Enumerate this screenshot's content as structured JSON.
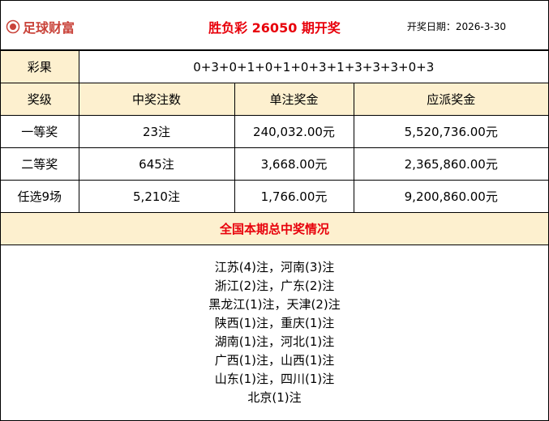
{
  "header": {
    "logo_text": "足球财富",
    "title": "胜负彩 26050 期开奖",
    "date_label": "开奖日期：",
    "date": "2026-3-30"
  },
  "result": {
    "label": "彩果",
    "value": "0+3+0+1+0+1+0+3+1+3+3+3+0+3"
  },
  "table": {
    "columns": [
      "奖级",
      "中奖注数",
      "单注奖金",
      "应派奖金"
    ],
    "rows": [
      [
        "一等奖",
        "23注",
        "240,032.00元",
        "5,520,736.00元"
      ],
      [
        "二等奖",
        "645注",
        "3,668.00元",
        "2,365,860.00元"
      ],
      [
        "任选9场",
        "5,210注",
        "1,766.00元",
        "9,200,860.00元"
      ]
    ]
  },
  "national": {
    "title": "全国本期总中奖情况",
    "lines": [
      "江苏(4)注，河南(3)注",
      "浙江(2)注，广东(2)注",
      "黑龙江(1)注，天津(2)注",
      "陕西(1)注，重庆(1)注",
      "湖南(1)注，河北(1)注",
      "广西(1)注，山西(1)注",
      "山东(1)注，四川(1)注",
      "北京(1)注"
    ]
  },
  "colors": {
    "header_bg": "#fdf0cf",
    "title": "#e8000b",
    "logo": "#c9433a"
  }
}
